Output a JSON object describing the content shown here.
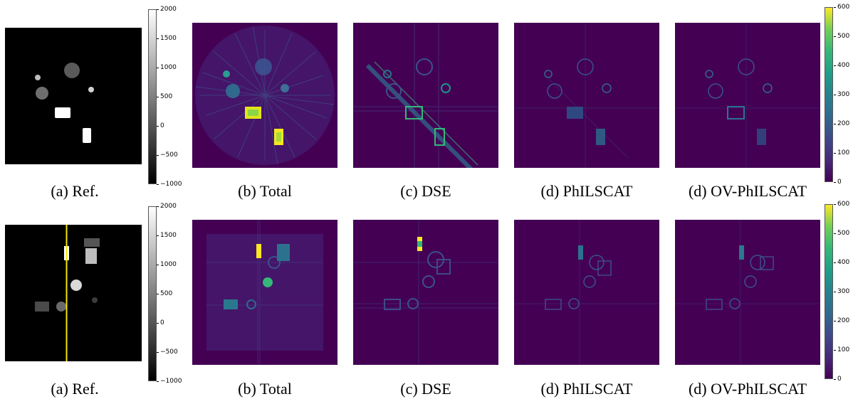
{
  "rows": [
    {
      "captions": [
        "(a) Ref.",
        "(b) Total",
        "(c) DSE",
        "(d) PhILSCAT",
        "(d) OV-PhILSCAT"
      ],
      "gray_colorbar_ticks": [
        "2000",
        "1500",
        "1000",
        "500",
        "0",
        "−500",
        "−1000"
      ],
      "viridis_colorbar_ticks": [
        "600",
        "500",
        "400",
        "300",
        "200",
        "100",
        "0"
      ]
    },
    {
      "captions": [
        "(a) Ref.",
        "(b) Total",
        "(c) DSE",
        "(d) PhILSCAT",
        "(d) OV-PhILSCAT"
      ],
      "gray_colorbar_ticks": [
        "2000",
        "1500",
        "1000",
        "500",
        "0",
        "−500",
        "−1000"
      ],
      "viridis_colorbar_ticks": [
        "600",
        "500",
        "400",
        "300",
        "200",
        "100",
        "0"
      ]
    }
  ],
  "colors": {
    "viridis_low": "#440154",
    "viridis_high": "#fde725",
    "profile_line": "#f2e600"
  },
  "colormaps": [
    "gray",
    "viridis"
  ]
}
